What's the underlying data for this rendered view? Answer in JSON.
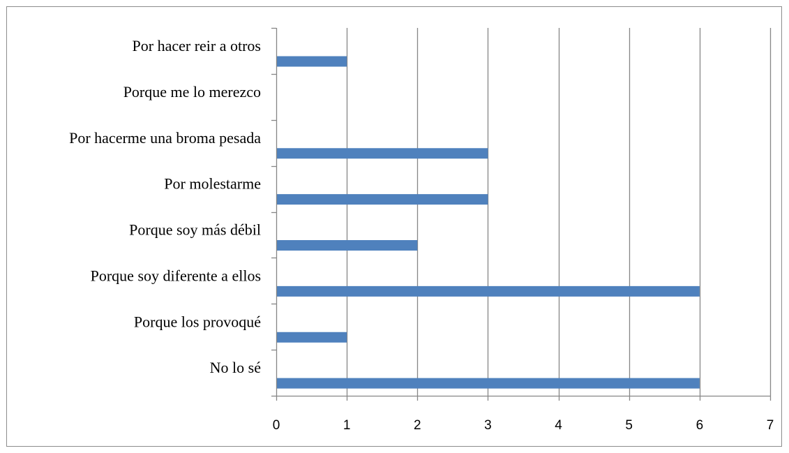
{
  "chart_data": {
    "type": "bar",
    "orientation": "horizontal",
    "categories": [
      "Por hacer reir a otros",
      "Porque me lo merezco",
      "Por hacerme una broma pesada",
      "Por molestarme",
      "Porque soy más débil",
      "Porque soy diferente a ellos",
      "Porque los provoqué",
      "No lo sé"
    ],
    "values": [
      1,
      0,
      3,
      3,
      2,
      6,
      1,
      6
    ],
    "xlim": [
      0,
      7
    ],
    "xticks": [
      "0",
      "1",
      "2",
      "3",
      "4",
      "5",
      "6",
      "7"
    ],
    "grid": "vertical",
    "legend": "none",
    "bar_color": "#4f81bd",
    "grid_color": "#868686",
    "title": "",
    "xlabel": "",
    "ylabel": ""
  }
}
